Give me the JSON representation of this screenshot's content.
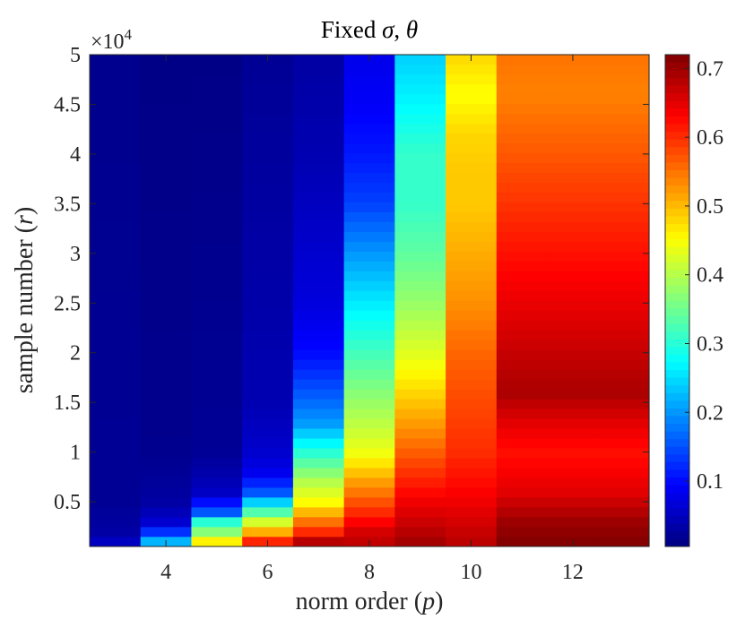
{
  "chart_data": {
    "type": "heatmap",
    "title": "Fixed σ, θ",
    "xlabel": "norm order (",
    "xlabel_var": "p",
    "ylabel": "sample number (",
    "ylabel_var": "r",
    "ylabel_close": ")",
    "y_multiplier": "×10",
    "y_multiplier_exp": "4",
    "x_columns": [
      3,
      4,
      5,
      6,
      7,
      8,
      9,
      10,
      11,
      12,
      13
    ],
    "x_ticks": [
      4,
      6,
      8,
      10,
      12
    ],
    "y_range": [
      500,
      50000
    ],
    "y_ticks": [
      5000,
      10000,
      15000,
      20000,
      25000,
      30000,
      35000,
      40000,
      45000,
      50000
    ],
    "y_tick_labels": [
      "0.5",
      "1",
      "1.5",
      "2",
      "2.5",
      "3",
      "3.5",
      "4",
      "4.5",
      "5"
    ],
    "colormap": "jet",
    "color_range": [
      0.005,
      0.72
    ],
    "colorbar_ticks": [
      0.1,
      0.2,
      0.3,
      0.4,
      0.5,
      0.6,
      0.7
    ],
    "column_profiles": [
      {
        "x": 3,
        "anchors": [
          [
            500,
            0.06
          ],
          [
            2000,
            0.03
          ],
          [
            5000,
            0.02
          ],
          [
            50000,
            0.015
          ]
        ]
      },
      {
        "x": 4,
        "anchors": [
          [
            500,
            0.28
          ],
          [
            1500,
            0.16
          ],
          [
            3000,
            0.06
          ],
          [
            5000,
            0.03
          ],
          [
            10000,
            0.015
          ],
          [
            50000,
            0.01
          ]
        ]
      },
      {
        "x": 5,
        "anchors": [
          [
            500,
            0.52
          ],
          [
            1500,
            0.4
          ],
          [
            3000,
            0.3
          ],
          [
            4000,
            0.15
          ],
          [
            6000,
            0.05
          ],
          [
            10000,
            0.02
          ],
          [
            50000,
            0.01
          ]
        ]
      },
      {
        "x": 6,
        "anchors": [
          [
            500,
            0.66
          ],
          [
            1500,
            0.55
          ],
          [
            3000,
            0.42
          ],
          [
            4500,
            0.28
          ],
          [
            6000,
            0.15
          ],
          [
            8000,
            0.08
          ],
          [
            10000,
            0.06
          ],
          [
            15000,
            0.04
          ],
          [
            50000,
            0.02
          ]
        ]
      },
      {
        "x": 7,
        "anchors": [
          [
            500,
            0.72
          ],
          [
            2000,
            0.6
          ],
          [
            3000,
            0.55
          ],
          [
            5000,
            0.45
          ],
          [
            7000,
            0.4
          ],
          [
            10000,
            0.3
          ],
          [
            13000,
            0.2
          ],
          [
            17000,
            0.14
          ],
          [
            20000,
            0.1
          ],
          [
            25000,
            0.07
          ],
          [
            40000,
            0.04
          ],
          [
            50000,
            0.03
          ]
        ]
      },
      {
        "x": 8,
        "anchors": [
          [
            500,
            0.68
          ],
          [
            2000,
            0.66
          ],
          [
            4000,
            0.6
          ],
          [
            7000,
            0.52
          ],
          [
            10000,
            0.44
          ],
          [
            15000,
            0.38
          ],
          [
            20000,
            0.32
          ],
          [
            25000,
            0.26
          ],
          [
            30000,
            0.2
          ],
          [
            35000,
            0.14
          ],
          [
            40000,
            0.11
          ],
          [
            45000,
            0.09
          ],
          [
            50000,
            0.08
          ]
        ]
      },
      {
        "x": 9,
        "anchors": [
          [
            500,
            0.7
          ],
          [
            2000,
            0.68
          ],
          [
            5000,
            0.64
          ],
          [
            9000,
            0.58
          ],
          [
            13000,
            0.52
          ],
          [
            16000,
            0.48
          ],
          [
            20000,
            0.43
          ],
          [
            25000,
            0.38
          ],
          [
            30000,
            0.34
          ],
          [
            35000,
            0.31
          ],
          [
            40000,
            0.31
          ],
          [
            45000,
            0.27
          ],
          [
            50000,
            0.24
          ]
        ]
      },
      {
        "x": 10,
        "anchors": [
          [
            500,
            0.68
          ],
          [
            2000,
            0.67
          ],
          [
            5000,
            0.64
          ],
          [
            10000,
            0.6
          ],
          [
            15000,
            0.58
          ],
          [
            20000,
            0.56
          ],
          [
            25000,
            0.53
          ],
          [
            30000,
            0.51
          ],
          [
            35000,
            0.49
          ],
          [
            38000,
            0.49
          ],
          [
            42000,
            0.48
          ],
          [
            46000,
            0.45
          ],
          [
            50000,
            0.48
          ]
        ]
      },
      {
        "x": 11,
        "anchors": [
          [
            500,
            0.72
          ],
          [
            3000,
            0.7
          ],
          [
            6000,
            0.65
          ],
          [
            10000,
            0.62
          ],
          [
            13000,
            0.65
          ],
          [
            16000,
            0.69
          ],
          [
            18000,
            0.68
          ],
          [
            22000,
            0.66
          ],
          [
            26000,
            0.64
          ],
          [
            30000,
            0.62
          ],
          [
            34000,
            0.6
          ],
          [
            38000,
            0.58
          ],
          [
            42000,
            0.56
          ],
          [
            46000,
            0.54
          ],
          [
            50000,
            0.55
          ]
        ]
      }
    ]
  }
}
